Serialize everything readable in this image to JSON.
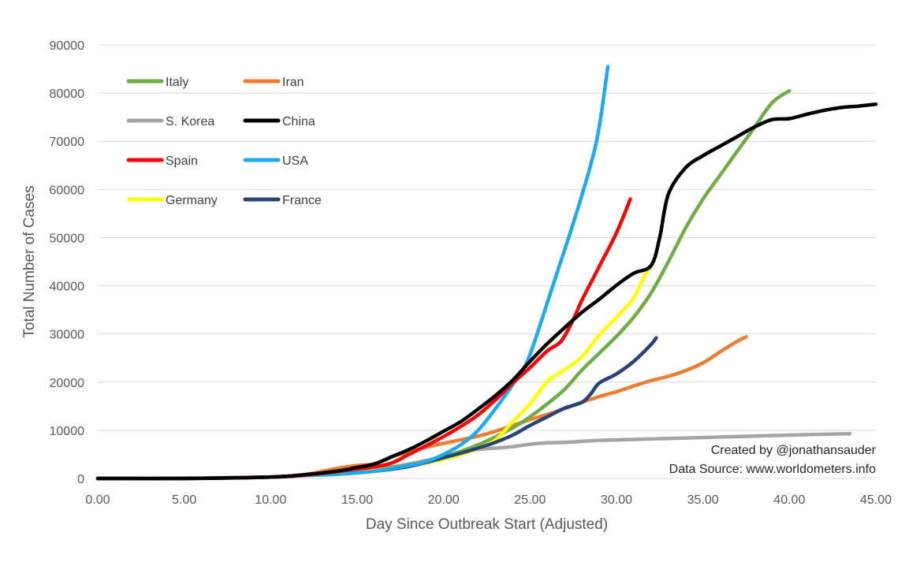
{
  "chart_data": {
    "type": "line",
    "title": "",
    "xlabel": "Day Since Outbreak Start (Adjusted)",
    "ylabel": "Total Number of Cases",
    "xlim": [
      0,
      45
    ],
    "ylim": [
      0,
      90000
    ],
    "x_ticks": [
      0,
      5,
      10,
      15,
      20,
      25,
      30,
      35,
      40,
      45
    ],
    "x_tick_labels": [
      "0.00",
      "5.00",
      "10.00",
      "15.00",
      "20.00",
      "25.00",
      "30.00",
      "35.00",
      "40.00",
      "45.00"
    ],
    "y_ticks": [
      0,
      10000,
      20000,
      30000,
      40000,
      50000,
      60000,
      70000,
      80000,
      90000
    ],
    "y_tick_labels": [
      "0",
      "10000",
      "20000",
      "30000",
      "40000",
      "50000",
      "60000",
      "70000",
      "80000",
      "90000"
    ],
    "grid": "horizontal",
    "legend_position": "top-left",
    "annotations": [
      "Created by @jonathansauder",
      "Data Source: www.worldometers.info"
    ],
    "series": [
      {
        "name": "Italy",
        "color": "#70ad47",
        "points": [
          [
            0,
            0
          ],
          [
            5,
            0
          ],
          [
            10,
            300
          ],
          [
            12,
            700
          ],
          [
            14,
            1100
          ],
          [
            16,
            1900
          ],
          [
            18,
            2800
          ],
          [
            20,
            4500
          ],
          [
            22,
            7000
          ],
          [
            24,
            10500
          ],
          [
            25,
            12800
          ],
          [
            26,
            15500
          ],
          [
            27,
            18500
          ],
          [
            28,
            22500
          ],
          [
            29,
            26000
          ],
          [
            30,
            29500
          ],
          [
            31,
            33500
          ],
          [
            32,
            38500
          ],
          [
            33,
            45000
          ],
          [
            34,
            52000
          ],
          [
            35,
            58000
          ],
          [
            36,
            63000
          ],
          [
            37,
            68000
          ],
          [
            38,
            73000
          ],
          [
            39,
            78000
          ],
          [
            40,
            80500
          ]
        ]
      },
      {
        "name": "Iran",
        "color": "#ed7d31",
        "points": [
          [
            0,
            0
          ],
          [
            5,
            0
          ],
          [
            10,
            300
          ],
          [
            12,
            800
          ],
          [
            13,
            1500
          ],
          [
            14,
            2200
          ],
          [
            15,
            2700
          ],
          [
            16,
            3000
          ],
          [
            17,
            4500
          ],
          [
            18,
            5500
          ],
          [
            19,
            6500
          ],
          [
            20,
            7300
          ],
          [
            21,
            8000
          ],
          [
            22,
            8800
          ],
          [
            23,
            9800
          ],
          [
            24,
            11000
          ],
          [
            25,
            12200
          ],
          [
            26,
            13300
          ],
          [
            27,
            14500
          ],
          [
            28,
            15800
          ],
          [
            29,
            17000
          ],
          [
            30,
            18000
          ],
          [
            31,
            19200
          ],
          [
            32,
            20300
          ],
          [
            33,
            21200
          ],
          [
            34,
            22400
          ],
          [
            35,
            24000
          ],
          [
            36,
            26300
          ],
          [
            37,
            28500
          ],
          [
            37.5,
            29400
          ]
        ]
      },
      {
        "name": "S. Korea",
        "color": "#a5a5a5",
        "points": [
          [
            0,
            0
          ],
          [
            5,
            0
          ],
          [
            10,
            300
          ],
          [
            12,
            600
          ],
          [
            14,
            1000
          ],
          [
            16,
            1800
          ],
          [
            18,
            3000
          ],
          [
            20,
            4500
          ],
          [
            22,
            6000
          ],
          [
            23,
            6300
          ],
          [
            24,
            6600
          ],
          [
            25,
            7100
          ],
          [
            26,
            7400
          ],
          [
            27,
            7500
          ],
          [
            28,
            7700
          ],
          [
            29,
            7900
          ],
          [
            30,
            8000
          ],
          [
            32,
            8200
          ],
          [
            35,
            8500
          ],
          [
            38,
            8800
          ],
          [
            40,
            9000
          ],
          [
            43.5,
            9300
          ]
        ]
      },
      {
        "name": "China",
        "color": "#000000",
        "points": [
          [
            0,
            0
          ],
          [
            5,
            0
          ],
          [
            10,
            300
          ],
          [
            12,
            800
          ],
          [
            14,
            1600
          ],
          [
            15,
            2300
          ],
          [
            16,
            3000
          ],
          [
            17,
            4500
          ],
          [
            18,
            6000
          ],
          [
            19,
            7800
          ],
          [
            20,
            9800
          ],
          [
            21,
            11800
          ],
          [
            22,
            14400
          ],
          [
            23,
            17200
          ],
          [
            24,
            20400
          ],
          [
            25,
            24300
          ],
          [
            26,
            28000
          ],
          [
            27,
            31300
          ],
          [
            28,
            34500
          ],
          [
            29,
            37200
          ],
          [
            30,
            40100
          ],
          [
            31,
            42600
          ],
          [
            32,
            44200
          ],
          [
            32.5,
            50000
          ],
          [
            33,
            59000
          ],
          [
            34,
            64500
          ],
          [
            35,
            67000
          ],
          [
            36,
            69000
          ],
          [
            37,
            71000
          ],
          [
            38,
            73000
          ],
          [
            39,
            74500
          ],
          [
            40,
            74700
          ],
          [
            41,
            75600
          ],
          [
            42,
            76400
          ],
          [
            43,
            77000
          ],
          [
            44,
            77300
          ],
          [
            45,
            77700
          ]
        ]
      },
      {
        "name": "Spain",
        "color": "#ff0000",
        "points": [
          [
            0,
            0
          ],
          [
            5,
            0
          ],
          [
            10,
            300
          ],
          [
            12,
            700
          ],
          [
            14,
            1500
          ],
          [
            15,
            2000
          ],
          [
            16,
            2400
          ],
          [
            17,
            3200
          ],
          [
            18,
            5000
          ],
          [
            19,
            6800
          ],
          [
            20,
            8700
          ],
          [
            21,
            10800
          ],
          [
            22,
            13200
          ],
          [
            23,
            16300
          ],
          [
            24,
            19800
          ],
          [
            25,
            23000
          ],
          [
            26,
            26500
          ],
          [
            26.8,
            28500
          ],
          [
            27.5,
            33000
          ],
          [
            28,
            37000
          ],
          [
            29,
            44000
          ],
          [
            30,
            51000
          ],
          [
            30.8,
            58000
          ]
        ]
      },
      {
        "name": "USA",
        "color": "#1eaaf1",
        "points": [
          [
            0,
            0
          ],
          [
            5,
            0
          ],
          [
            10,
            300
          ],
          [
            12,
            600
          ],
          [
            14,
            900
          ],
          [
            16,
            1500
          ],
          [
            18,
            2700
          ],
          [
            19,
            3500
          ],
          [
            20,
            5000
          ],
          [
            21,
            7000
          ],
          [
            22,
            10000
          ],
          [
            23,
            14500
          ],
          [
            24,
            19500
          ],
          [
            24.8,
            24000
          ],
          [
            25.5,
            31000
          ],
          [
            26.5,
            42000
          ],
          [
            27.5,
            53000
          ],
          [
            28.5,
            65000
          ],
          [
            29,
            73000
          ],
          [
            29.5,
            85500
          ]
        ]
      },
      {
        "name": "Germany",
        "color": "#ffff00",
        "points": [
          [
            0,
            0
          ],
          [
            5,
            0
          ],
          [
            10,
            300
          ],
          [
            12,
            700
          ],
          [
            14,
            1000
          ],
          [
            16,
            1600
          ],
          [
            18,
            2600
          ],
          [
            20,
            4000
          ],
          [
            22,
            6200
          ],
          [
            23,
            8000
          ],
          [
            24,
            11800
          ],
          [
            25,
            15500
          ],
          [
            26,
            20200
          ],
          [
            27,
            22600
          ],
          [
            28,
            25300
          ],
          [
            29,
            29800
          ],
          [
            30,
            33500
          ],
          [
            31,
            37500
          ],
          [
            31.6,
            42000
          ],
          [
            32,
            44000
          ]
        ]
      },
      {
        "name": "France",
        "color": "#264478",
        "points": [
          [
            0,
            0
          ],
          [
            5,
            0
          ],
          [
            10,
            300
          ],
          [
            12,
            700
          ],
          [
            14,
            1000
          ],
          [
            16,
            1500
          ],
          [
            18,
            2500
          ],
          [
            20,
            4300
          ],
          [
            22,
            6300
          ],
          [
            23,
            7500
          ],
          [
            24,
            9000
          ],
          [
            25,
            11000
          ],
          [
            26,
            12800
          ],
          [
            27,
            14600
          ],
          [
            28,
            15800
          ],
          [
            28.5,
            17500
          ],
          [
            29,
            19800
          ],
          [
            30,
            21700
          ],
          [
            31,
            24300
          ],
          [
            32,
            27800
          ],
          [
            32.3,
            29200
          ]
        ]
      }
    ]
  }
}
